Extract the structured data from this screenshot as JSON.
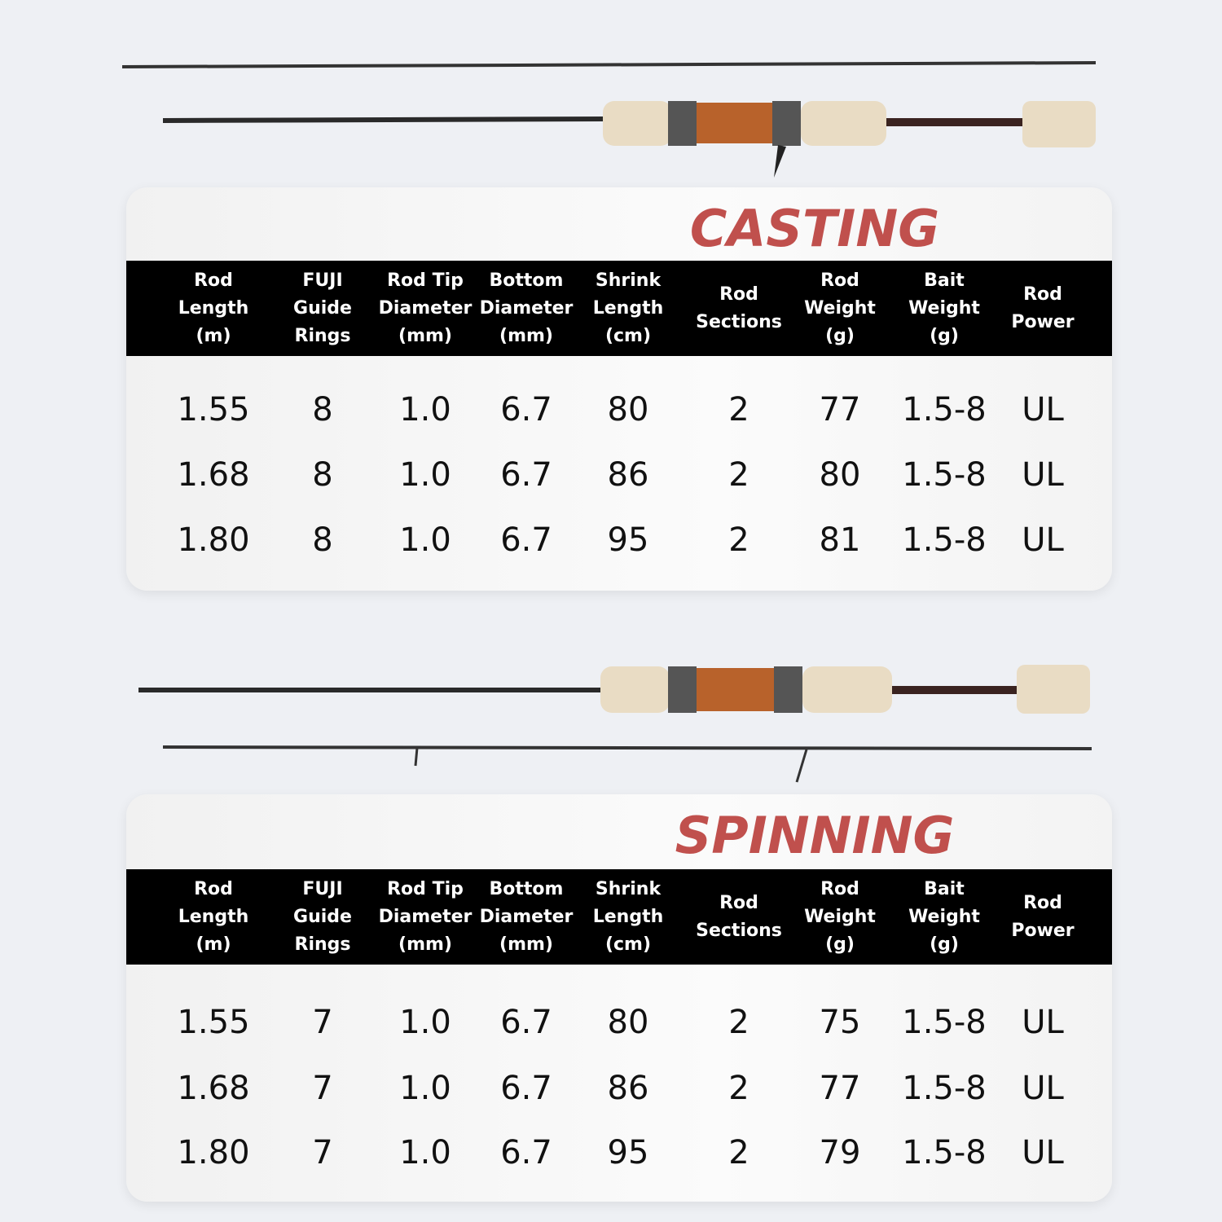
{
  "tables": [
    {
      "title": "CASTING",
      "headers": [
        [
          "Rod",
          "Length",
          "(m)"
        ],
        [
          "FUJI",
          "Guide",
          "Rings"
        ],
        [
          "Rod Tip",
          "Diameter",
          "(mm)"
        ],
        [
          "Bottom",
          "Diameter",
          "(mm)"
        ],
        [
          "Shrink",
          "Length",
          "(cm)"
        ],
        [
          "Rod",
          "Sections"
        ],
        [
          "Rod",
          "Weight",
          "(g)"
        ],
        [
          "Bait",
          "Weight",
          "(g)"
        ],
        [
          "Rod",
          "Power"
        ]
      ],
      "rows": [
        [
          "1.55",
          "8",
          "1.0",
          "6.7",
          "80",
          "2",
          "77",
          "1.5-8",
          "UL"
        ],
        [
          "1.68",
          "8",
          "1.0",
          "6.7",
          "86",
          "2",
          "80",
          "1.5-8",
          "UL"
        ],
        [
          "1.80",
          "8",
          "1.0",
          "6.7",
          "95",
          "2",
          "81",
          "1.5-8",
          "UL"
        ]
      ]
    },
    {
      "title": "SPINNING",
      "headers": [
        [
          "Rod",
          "Length",
          "(m)"
        ],
        [
          "FUJI",
          "Guide",
          "Rings"
        ],
        [
          "Rod Tip",
          "Diameter",
          "(mm)"
        ],
        [
          "Bottom",
          "Diameter",
          "(mm)"
        ],
        [
          "Shrink",
          "Length",
          "(cm)"
        ],
        [
          "Rod",
          "Sections"
        ],
        [
          "Rod",
          "Weight",
          "(g)"
        ],
        [
          "Bait",
          "Weight",
          "(g)"
        ],
        [
          "Rod",
          "Power"
        ]
      ],
      "rows": [
        [
          "1.55",
          "7",
          "1.0",
          "6.7",
          "80",
          "2",
          "75",
          "1.5-8",
          "UL"
        ],
        [
          "1.68",
          "7",
          "1.0",
          "6.7",
          "86",
          "2",
          "77",
          "1.5-8",
          "UL"
        ],
        [
          "1.80",
          "7",
          "1.0",
          "6.7",
          "95",
          "2",
          "79",
          "1.5-8",
          "UL"
        ]
      ]
    }
  ]
}
